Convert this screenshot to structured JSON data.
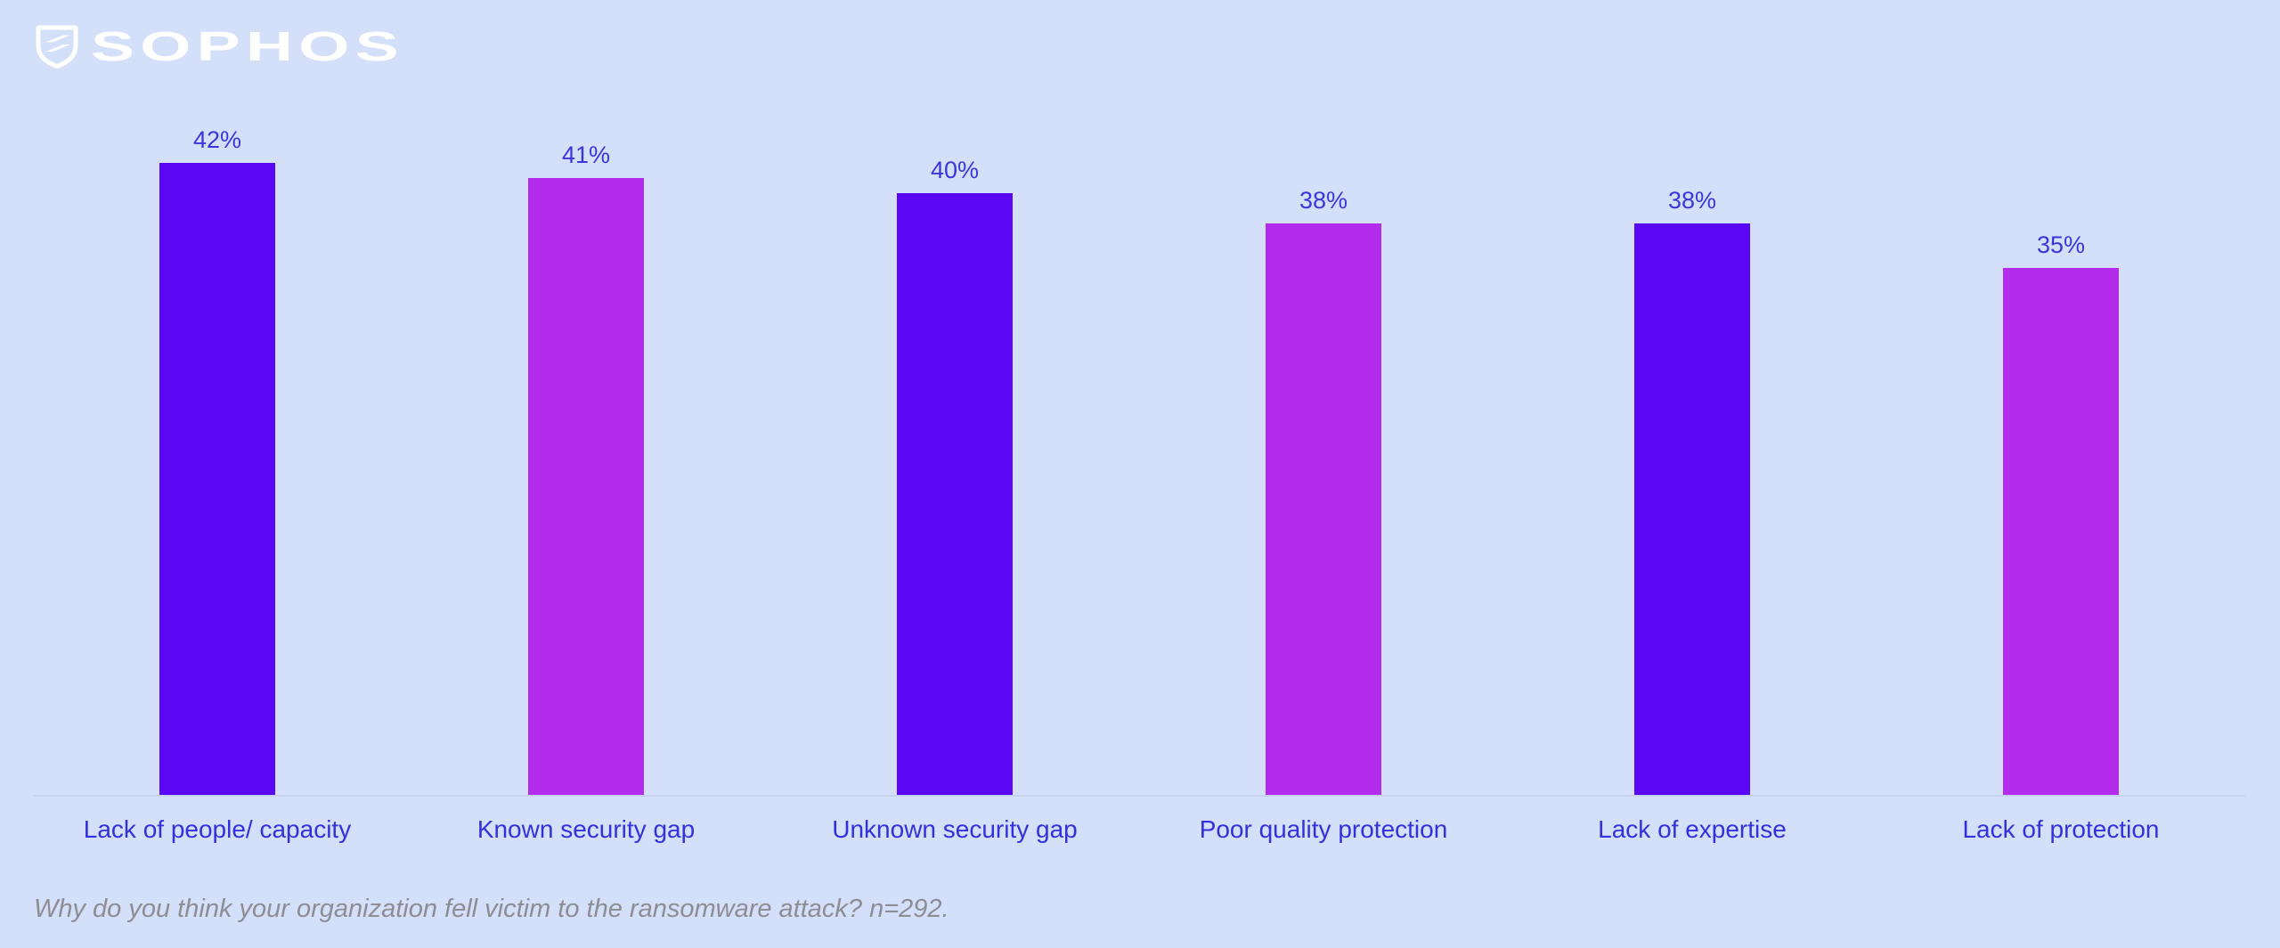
{
  "page": {
    "background": "#d4dff9"
  },
  "brand": {
    "logo_text": "SOPHOS",
    "logo_color": "#ffffff"
  },
  "chart_data": {
    "type": "bar",
    "title": "",
    "xlabel": "",
    "ylabel": "",
    "categories": [
      "Lack of people/ capacity",
      "Known security gap",
      "Unknown security gap",
      "Poor quality protection",
      "Lack of expertise",
      "Lack of protection"
    ],
    "values": [
      42,
      41,
      40,
      38,
      38,
      35
    ],
    "value_labels": [
      "42%",
      "41%",
      "40%",
      "38%",
      "38%",
      "35%"
    ],
    "bar_colors": [
      "#5a07f3",
      "#b42ceb",
      "#5a07f3",
      "#b42ceb",
      "#5a07f3",
      "#b42ceb"
    ],
    "palette": {
      "primary_purple": "#5a07f3",
      "secondary_magenta": "#b42ceb"
    },
    "unit": "%",
    "ylim": [
      0,
      53
    ],
    "grid": false,
    "legend": false,
    "value_label_color": "#3c35dc",
    "category_label_color": "#3331dd",
    "axis_line_color": "#c6d2ee"
  },
  "caption": {
    "text": "Why do you think your organization fell victim to the ransomware attack? n=292.",
    "color": "#8d8d95"
  }
}
